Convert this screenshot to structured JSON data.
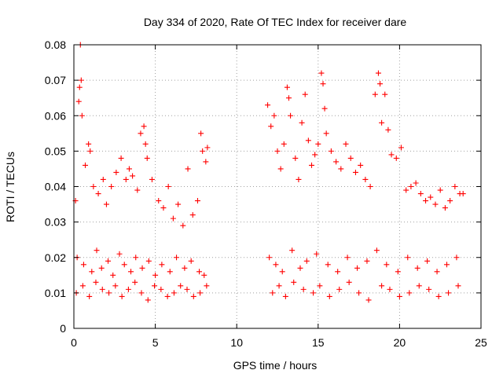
{
  "chart_data": {
    "type": "scatter",
    "title": "Day 334 of 2020, Rate Of TEC Index for receiver dare",
    "xlabel": "GPS time / hours",
    "ylabel": "ROTI / TECUs",
    "xlim": [
      0,
      25
    ],
    "ylim": [
      0,
      0.08
    ],
    "xticks": [
      "0",
      "5",
      "10",
      "15",
      "20",
      "25"
    ],
    "yticks": [
      "0",
      "0.01",
      "0.02",
      "0.03",
      "0.04",
      "0.05",
      "0.06",
      "0.07",
      "0.08"
    ],
    "grid": true,
    "marker": "plus",
    "marker_color": "#ff0000",
    "series": [
      {
        "x": [
          0.1,
          0.3,
          0.35,
          0.4,
          0.45,
          0.5,
          0.7,
          0.9,
          1.0,
          1.2,
          1.5,
          1.8,
          2.0,
          2.3,
          2.6,
          2.9,
          3.2,
          3.4,
          3.6,
          3.9,
          4.1,
          4.3,
          4.4,
          4.5,
          4.8,
          5.2,
          5.5,
          5.8,
          6.1,
          6.4,
          6.7,
          7.0,
          7.3,
          7.6,
          7.8,
          7.9,
          8.1,
          8.2,
          0.2,
          0.6,
          1.1,
          1.4,
          1.7,
          2.1,
          2.4,
          2.8,
          3.1,
          3.5,
          3.8,
          4.2,
          4.6,
          5.0,
          5.4,
          5.9,
          6.3,
          6.8,
          7.2,
          7.7,
          8.0,
          0.15,
          0.55,
          0.95,
          1.35,
          1.75,
          2.15,
          2.55,
          2.95,
          3.35,
          3.75,
          4.15,
          4.55,
          4.95,
          5.35,
          5.75,
          6.15,
          6.55,
          6.95,
          7.35,
          7.75,
          8.15,
          11.9,
          12.1,
          12.3,
          12.5,
          12.7,
          12.9,
          13.1,
          13.2,
          13.3,
          13.6,
          13.8,
          14.0,
          14.2,
          14.4,
          14.6,
          14.8,
          15.0,
          15.2,
          15.3,
          15.4,
          15.5,
          15.8,
          16.1,
          16.4,
          16.7,
          17.0,
          17.3,
          17.6,
          17.9,
          18.2,
          18.5,
          18.7,
          18.8,
          18.9,
          19.1,
          19.3,
          19.5,
          19.8,
          20.1,
          20.4,
          20.7,
          21.0,
          21.3,
          21.6,
          21.9,
          22.2,
          22.5,
          22.8,
          23.1,
          23.4,
          23.7,
          23.9,
          12.0,
          12.4,
          12.8,
          13.4,
          13.9,
          14.3,
          14.9,
          15.6,
          16.2,
          16.8,
          17.4,
          18.0,
          18.6,
          19.2,
          19.9,
          20.5,
          21.1,
          21.7,
          22.3,
          22.9,
          23.5,
          12.2,
          12.6,
          13.0,
          13.5,
          14.1,
          14.7,
          15.1,
          15.7,
          16.3,
          16.9,
          17.5,
          18.1,
          18.9,
          19.4,
          20.0,
          20.6,
          21.2,
          21.8,
          22.4,
          23.0,
          23.6
        ],
        "y": [
          0.036,
          0.064,
          0.068,
          0.08,
          0.07,
          0.06,
          0.046,
          0.052,
          0.05,
          0.04,
          0.038,
          0.042,
          0.035,
          0.04,
          0.044,
          0.048,
          0.042,
          0.045,
          0.043,
          0.039,
          0.055,
          0.057,
          0.052,
          0.048,
          0.042,
          0.036,
          0.034,
          0.04,
          0.031,
          0.035,
          0.029,
          0.045,
          0.032,
          0.036,
          0.055,
          0.05,
          0.047,
          0.051,
          0.02,
          0.018,
          0.016,
          0.022,
          0.017,
          0.019,
          0.015,
          0.021,
          0.018,
          0.016,
          0.02,
          0.017,
          0.019,
          0.015,
          0.018,
          0.016,
          0.02,
          0.017,
          0.019,
          0.016,
          0.015,
          0.01,
          0.012,
          0.009,
          0.013,
          0.011,
          0.01,
          0.012,
          0.009,
          0.011,
          0.013,
          0.01,
          0.008,
          0.012,
          0.011,
          0.009,
          0.01,
          0.012,
          0.011,
          0.009,
          0.01,
          0.012,
          0.063,
          0.057,
          0.06,
          0.05,
          0.045,
          0.052,
          0.068,
          0.065,
          0.06,
          0.048,
          0.042,
          0.058,
          0.066,
          0.053,
          0.046,
          0.049,
          0.052,
          0.072,
          0.069,
          0.062,
          0.055,
          0.05,
          0.047,
          0.045,
          0.052,
          0.048,
          0.044,
          0.046,
          0.042,
          0.04,
          0.066,
          0.072,
          0.069,
          0.058,
          0.066,
          0.056,
          0.049,
          0.048,
          0.051,
          0.039,
          0.04,
          0.041,
          0.038,
          0.036,
          0.037,
          0.035,
          0.039,
          0.034,
          0.036,
          0.04,
          0.038,
          0.038,
          0.02,
          0.018,
          0.016,
          0.022,
          0.017,
          0.019,
          0.021,
          0.018,
          0.016,
          0.02,
          0.017,
          0.019,
          0.022,
          0.018,
          0.016,
          0.02,
          0.017,
          0.019,
          0.016,
          0.018,
          0.02,
          0.01,
          0.012,
          0.009,
          0.013,
          0.011,
          0.01,
          0.012,
          0.009,
          0.011,
          0.013,
          0.01,
          0.008,
          0.012,
          0.011,
          0.009,
          0.01,
          0.012,
          0.011,
          0.009,
          0.01,
          0.012
        ]
      }
    ]
  }
}
